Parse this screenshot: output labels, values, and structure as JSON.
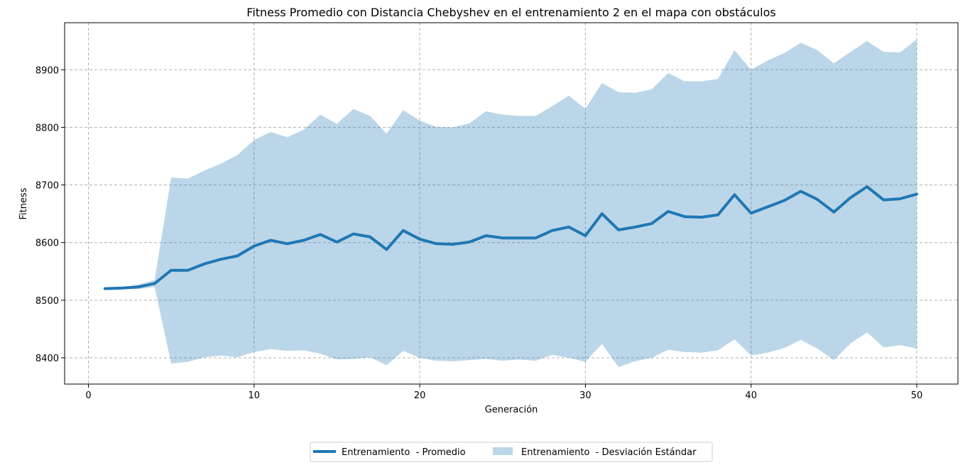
{
  "chart_data": {
    "type": "line",
    "title": "Fitness Promedio con Distancia Chebyshev en el entrenamiento 2 en el mapa con obstáculos",
    "xlabel": "Generación",
    "ylabel": "Fitness",
    "xlim": [
      -1.45,
      52.45
    ],
    "ylim": [
      8355,
      8482
    ],
    "ylim_note": "",
    "x_ticks": [
      0,
      10,
      20,
      30,
      40,
      50
    ],
    "y_ticks": [
      8400,
      8500,
      8600,
      8700,
      8800,
      8900
    ],
    "grid": true,
    "legend_position": "bottom-center",
    "x": [
      1,
      2,
      3,
      4,
      5,
      6,
      7,
      8,
      9,
      10,
      11,
      12,
      13,
      14,
      15,
      16,
      17,
      18,
      19,
      20,
      21,
      22,
      23,
      24,
      25,
      26,
      27,
      28,
      29,
      30,
      31,
      32,
      33,
      34,
      35,
      36,
      37,
      38,
      39,
      40,
      41,
      42,
      43,
      44,
      45,
      46,
      47,
      48,
      49,
      50
    ],
    "series": [
      {
        "name": "Entrenamiento  - Promedio",
        "kind": "line",
        "color": "#1f77b4",
        "values": [
          8520,
          8521,
          8523,
          8529,
          8552,
          8552,
          8563,
          8571,
          8577,
          8594,
          8604,
          8598,
          8604,
          8614,
          8601,
          8615,
          8610,
          8588,
          8621,
          8606,
          8598,
          8597,
          8601,
          8612,
          8608,
          8608,
          8608,
          8621,
          8627,
          8612,
          8650,
          8622,
          8627,
          8633,
          8654,
          8645,
          8644,
          8648,
          8683,
          8651,
          8662,
          8673,
          8689,
          8675,
          8653,
          8678,
          8697,
          8674,
          8676,
          8684
        ]
      },
      {
        "name": "Entrenamiento  - Desviación Estándar",
        "kind": "band",
        "color": "#1f77b4",
        "opacity": 0.3,
        "upper": [
          8521,
          8522,
          8527,
          8535,
          8713,
          8711,
          8725,
          8737,
          8752,
          8778,
          8792,
          8783,
          8796,
          8822,
          8806,
          8832,
          8820,
          8789,
          8830,
          8812,
          8801,
          8800,
          8807,
          8828,
          8822,
          8820,
          8820,
          8837,
          8855,
          8832,
          8877,
          8861,
          8860,
          8866,
          8894,
          8880,
          8880,
          8884,
          8934,
          8900,
          8916,
          8929,
          8947,
          8934,
          8911,
          8931,
          8950,
          8931,
          8930,
          8953
        ],
        "lower": [
          8519,
          8520,
          8519,
          8523,
          8390,
          8393,
          8401,
          8404,
          8401,
          8410,
          8415,
          8412,
          8413,
          8407,
          8397,
          8398,
          8401,
          8387,
          8412,
          8400,
          8395,
          8394,
          8396,
          8398,
          8395,
          8397,
          8395,
          8405,
          8400,
          8393,
          8424,
          8384,
          8394,
          8400,
          8414,
          8410,
          8409,
          8413,
          8432,
          8404,
          8409,
          8417,
          8431,
          8416,
          8396,
          8425,
          8444,
          8418,
          8422,
          8416
        ]
      }
    ]
  }
}
